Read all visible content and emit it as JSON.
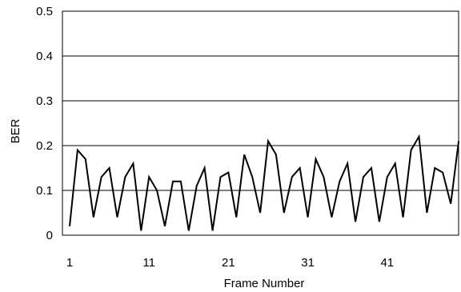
{
  "chart_data": {
    "type": "line",
    "title": "",
    "xlabel": "Frame Number",
    "ylabel": "BER",
    "xlim": [
      1,
      50
    ],
    "ylim": [
      0,
      0.5
    ],
    "x_ticks": [
      1,
      11,
      21,
      31,
      41
    ],
    "y_ticks": [
      0,
      0.1,
      0.2,
      0.3,
      0.4,
      0.5
    ],
    "x_tick_labels": [
      "1",
      "11",
      "21",
      "31",
      "41"
    ],
    "y_tick_labels": [
      "0",
      "0.1",
      "0.2",
      "0.3",
      "0.4",
      "0.5"
    ],
    "grid": "horizontal",
    "legend": "none",
    "line_color": "#000000",
    "series": [
      {
        "x": [
          1,
          2,
          3,
          4,
          5,
          6,
          7,
          8,
          9,
          10,
          11,
          12,
          13,
          14,
          15,
          16,
          17,
          18,
          19,
          20,
          21,
          22,
          23,
          24,
          25,
          26,
          27,
          28,
          29,
          30,
          31,
          32,
          33,
          34,
          35,
          36,
          37,
          38,
          39,
          40,
          41,
          42,
          43,
          44,
          45,
          46,
          47,
          48,
          49,
          50
        ],
        "values": [
          0.02,
          0.19,
          0.17,
          0.04,
          0.13,
          0.15,
          0.04,
          0.13,
          0.16,
          0.01,
          0.13,
          0.1,
          0.02,
          0.12,
          0.12,
          0.01,
          0.11,
          0.15,
          0.01,
          0.13,
          0.14,
          0.04,
          0.18,
          0.13,
          0.05,
          0.21,
          0.18,
          0.05,
          0.13,
          0.15,
          0.04,
          0.17,
          0.13,
          0.04,
          0.12,
          0.16,
          0.03,
          0.13,
          0.15,
          0.03,
          0.13,
          0.16,
          0.04,
          0.19,
          0.22,
          0.05,
          0.15,
          0.14,
          0.07,
          0.21
        ]
      }
    ]
  }
}
